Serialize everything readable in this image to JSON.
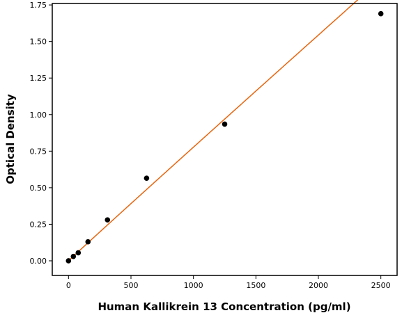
{
  "chart_data": {
    "type": "scatter",
    "title": "",
    "xlabel": "Human Kallikrein 13 Concentration (pg/ml)",
    "ylabel": "Optical Density",
    "xlim": [
      -130,
      2630
    ],
    "ylim": [
      -0.1,
      1.76
    ],
    "xticks": [
      0,
      500,
      1000,
      1500,
      2000,
      2500
    ],
    "yticks": [
      0.0,
      0.25,
      0.5,
      0.75,
      1.0,
      1.25,
      1.5,
      1.75
    ],
    "xtick_labels": [
      "0",
      "500",
      "1000",
      "1500",
      "2000",
      "2500"
    ],
    "ytick_labels": [
      "0.00",
      "0.25",
      "0.50",
      "0.75",
      "1.00",
      "1.25",
      "1.50",
      "1.75"
    ],
    "grid": false,
    "legend": "none",
    "series": [
      {
        "kind": "points",
        "color": "#000000",
        "x": [
          0,
          39,
          78,
          156,
          312,
          625,
          1250,
          2500
        ],
        "y": [
          0.0,
          0.03,
          0.055,
          0.13,
          0.28,
          0.565,
          0.935,
          1.69
        ]
      },
      {
        "kind": "fit",
        "color": "#e8650e",
        "x_range": [
          0,
          2500
        ],
        "model": "power_fit"
      }
    ]
  }
}
